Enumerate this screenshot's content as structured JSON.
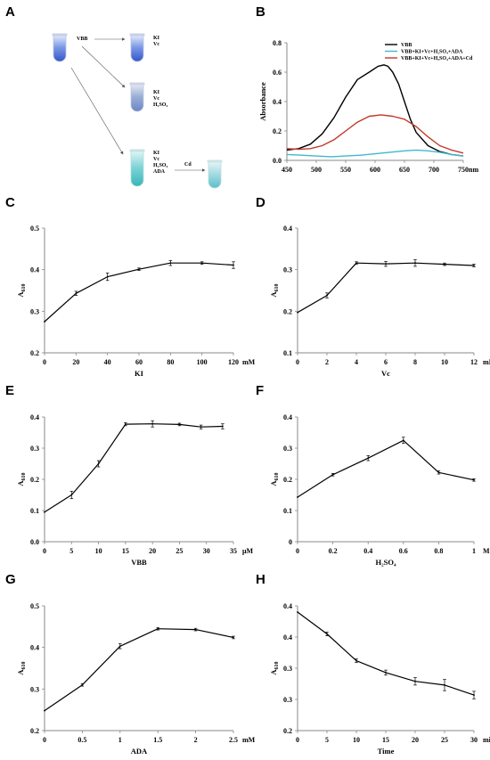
{
  "panel_labels": [
    "A",
    "B",
    "C",
    "D",
    "E",
    "F",
    "G",
    "H"
  ],
  "schematic": {
    "source_tube_label": "VBB",
    "tube1_label": "KI\nVc",
    "tube2_label": "KI\nVc\nH₂SO₄",
    "tube3_label": "KI\nVc\nH₂SO₄\nADA",
    "final_arrow_label": "Cd",
    "colors": {
      "blue": "#4a6fd8",
      "blue_dark": "#3456c8",
      "grey_blue": "#6b86c4",
      "cyan": "#38b5b8",
      "cyan_light": "#6ac8d0"
    }
  },
  "chart_data": [
    {
      "id": "B",
      "type": "line",
      "xlabel": "nm",
      "ylabel": "Absorbance",
      "xlim": [
        450,
        750
      ],
      "ylim": [
        0,
        0.8
      ],
      "xticks": [
        450,
        500,
        550,
        600,
        650,
        700,
        750
      ],
      "yticks": [
        0,
        0.2,
        0.4,
        0.6,
        0.8
      ],
      "yticklabels": [
        "0.0",
        "0.2",
        "0.4",
        "0.6",
        "0.8"
      ],
      "legend_position": "top-right",
      "series": [
        {
          "name": "VBB",
          "color": "#000000",
          "x": [
            450,
            470,
            490,
            510,
            530,
            550,
            570,
            590,
            605,
            615,
            622,
            630,
            640,
            650,
            660,
            670,
            690,
            710,
            730,
            750
          ],
          "y": [
            0.07,
            0.08,
            0.11,
            0.18,
            0.29,
            0.43,
            0.55,
            0.6,
            0.64,
            0.65,
            0.64,
            0.6,
            0.52,
            0.4,
            0.28,
            0.19,
            0.1,
            0.06,
            0.04,
            0.03
          ]
        },
        {
          "name": "VBB+KI+Vc+H₂SO₄+ADA",
          "color": "#40b8d0",
          "x": [
            450,
            475,
            500,
            525,
            550,
            575,
            600,
            625,
            650,
            670,
            690,
            710,
            730,
            750
          ],
          "y": [
            0.04,
            0.035,
            0.03,
            0.025,
            0.03,
            0.035,
            0.045,
            0.055,
            0.065,
            0.07,
            0.065,
            0.055,
            0.04,
            0.03
          ]
        },
        {
          "name": "VBB+KI+Vc+H₂SO₄+ADA+Cd",
          "color": "#c0392b",
          "x": [
            450,
            470,
            490,
            510,
            530,
            550,
            570,
            590,
            610,
            630,
            650,
            670,
            690,
            710,
            730,
            750
          ],
          "y": [
            0.08,
            0.075,
            0.08,
            0.1,
            0.14,
            0.2,
            0.26,
            0.3,
            0.31,
            0.3,
            0.28,
            0.23,
            0.16,
            0.1,
            0.07,
            0.05
          ]
        }
      ]
    },
    {
      "id": "C",
      "type": "line",
      "xlabel": "KI",
      "unit": "mM",
      "ylabel": "A",
      "ylabel_sub": "610",
      "xlim": [
        0,
        120
      ],
      "ylim": [
        0.2,
        0.5
      ],
      "xticks": [
        0,
        20,
        40,
        60,
        80,
        100,
        120
      ],
      "yticks": [
        0.2,
        0.3,
        0.4,
        0.5
      ],
      "x": [
        0,
        20,
        40,
        60,
        80,
        100,
        120
      ],
      "y": [
        0.275,
        0.343,
        0.383,
        0.401,
        0.416,
        0.416,
        0.411
      ],
      "err": [
        0,
        0.005,
        0.009,
        0.003,
        0.006,
        0.003,
        0.008
      ]
    },
    {
      "id": "D",
      "type": "line",
      "xlabel": "Vc",
      "unit": "mM",
      "ylabel": "A",
      "ylabel_sub": "610",
      "xlim": [
        0,
        12
      ],
      "ylim": [
        0.1,
        0.4
      ],
      "xticks": [
        0,
        2,
        4,
        6,
        8,
        10,
        12
      ],
      "yticks": [
        0.1,
        0.2,
        0.3,
        0.4
      ],
      "x": [
        0,
        2,
        4,
        6,
        8,
        10,
        12
      ],
      "y": [
        0.197,
        0.238,
        0.316,
        0.314,
        0.316,
        0.313,
        0.31
      ],
      "err": [
        0,
        0.006,
        0.003,
        0.006,
        0.008,
        0.003,
        0.003
      ]
    },
    {
      "id": "E",
      "type": "line",
      "xlabel": "VBB",
      "unit": "μM",
      "ylabel": "A",
      "ylabel_sub": "610",
      "xlim": [
        0,
        35
      ],
      "ylim": [
        0,
        0.4
      ],
      "xticks": [
        0,
        5,
        10,
        15,
        20,
        25,
        30,
        35
      ],
      "yticks": [
        0,
        0.1,
        0.2,
        0.3,
        0.4
      ],
      "yticklabels": [
        "0.0",
        "0.1",
        "0.2",
        "0.3",
        "0.4"
      ],
      "x": [
        0,
        5,
        10,
        15,
        20,
        25,
        29,
        33
      ],
      "y": [
        0.095,
        0.15,
        0.25,
        0.377,
        0.378,
        0.376,
        0.368,
        0.37
      ],
      "err": [
        0,
        0.012,
        0.01,
        0.005,
        0.01,
        0.004,
        0.006,
        0.008
      ]
    },
    {
      "id": "F",
      "type": "line",
      "xlabel": "H₂SO₄",
      "unit": "M",
      "ylabel": "A",
      "ylabel_sub": "610",
      "xlim": [
        0,
        1
      ],
      "ylim": [
        0,
        0.4
      ],
      "xticks": [
        0,
        0.2,
        0.4,
        0.6,
        0.8,
        1
      ],
      "yticks": [
        0,
        0.1,
        0.2,
        0.3,
        0.4
      ],
      "x": [
        0,
        0.2,
        0.4,
        0.6,
        0.8,
        1
      ],
      "y": [
        0.143,
        0.215,
        0.268,
        0.325,
        0.222,
        0.198
      ],
      "err": [
        0,
        0.004,
        0.008,
        0.01,
        0.005,
        0.004
      ]
    },
    {
      "id": "G",
      "type": "line",
      "xlabel": "ADA",
      "unit": "mM",
      "ylabel": "A",
      "ylabel_sub": "610",
      "xlim": [
        0,
        2.5
      ],
      "ylim": [
        0.2,
        0.5
      ],
      "xticks": [
        0,
        0.5,
        1,
        1.5,
        2,
        2.5
      ],
      "yticks": [
        0.2,
        0.3,
        0.4,
        0.5
      ],
      "x": [
        0,
        0.5,
        1,
        1.5,
        2,
        2.5
      ],
      "y": [
        0.248,
        0.31,
        0.403,
        0.445,
        0.443,
        0.424
      ],
      "err": [
        0,
        0.003,
        0.006,
        0.003,
        0.003,
        0.003
      ]
    },
    {
      "id": "H",
      "type": "line",
      "xlabel": "Time",
      "unit": "min",
      "ylabel": "A",
      "ylabel_sub": "610",
      "xlim": [
        0,
        30
      ],
      "ylim": [
        0.2,
        0.4
      ],
      "xticks": [
        0,
        5,
        10,
        15,
        20,
        25,
        30
      ],
      "yticks": [
        0.2,
        0.3,
        0.4
      ],
      "extra_ytick_values": [
        0.25,
        0.35
      ],
      "extra_ytick_labels": [
        "0.3",
        "0.4"
      ],
      "x": [
        0,
        5,
        10,
        15,
        20,
        25,
        30
      ],
      "y": [
        0.39,
        0.355,
        0.312,
        0.293,
        0.279,
        0.273,
        0.257
      ],
      "err": [
        0,
        0.003,
        0.003,
        0.004,
        0.006,
        0.009,
        0.006
      ]
    }
  ]
}
